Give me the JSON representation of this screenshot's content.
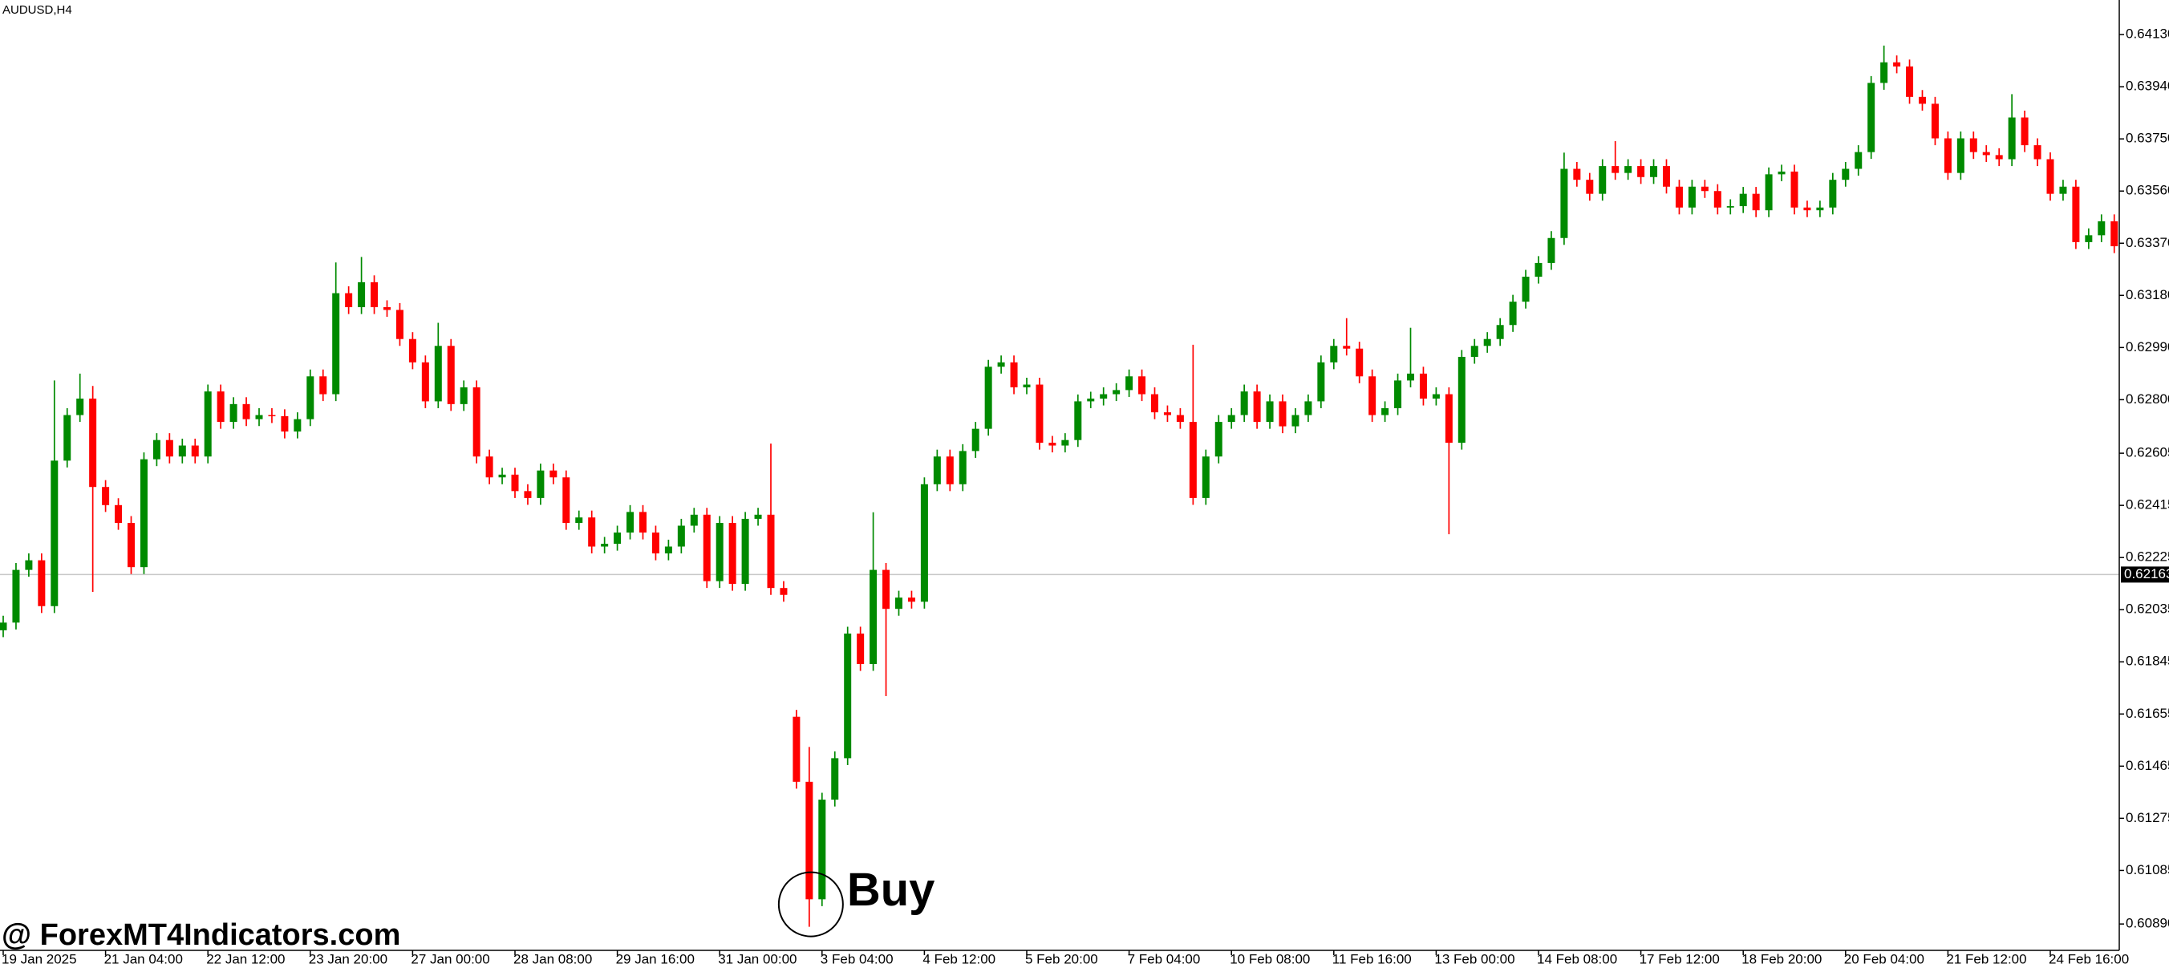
{
  "chart_data": {
    "type": "candlestick",
    "title": "AUDUSD,H4",
    "categories": [
      "19 Jan 2025",
      null,
      null,
      null,
      null,
      null,
      null,
      null,
      "21 Jan 04:00",
      null,
      null,
      null,
      null,
      null,
      null,
      null,
      "22 Jan 12:00",
      null,
      null,
      null,
      null,
      null,
      null,
      null,
      "23 Jan 20:00",
      null,
      null,
      null,
      null,
      null,
      null,
      null,
      "27 Jan 00:00",
      null,
      null,
      null,
      null,
      null,
      null,
      null,
      "28 Jan 08:00",
      null,
      null,
      null,
      null,
      null,
      null,
      null,
      "29 Jan 16:00",
      null,
      null,
      null,
      null,
      null,
      null,
      null,
      "31 Jan 00:00",
      null,
      null,
      null,
      null,
      null,
      null,
      null,
      "3 Feb 04:00",
      null,
      null,
      null,
      null,
      null,
      null,
      null,
      "4 Feb 12:00",
      null,
      null,
      null,
      null,
      null,
      null,
      null,
      "5 Feb 20:00",
      null,
      null,
      null,
      null,
      null,
      null,
      null,
      "7 Feb 04:00",
      null,
      null,
      null,
      null,
      null,
      null,
      null,
      "10 Feb 08:00",
      null,
      null,
      null,
      null,
      null,
      null,
      null,
      "11 Feb 16:00",
      null,
      null,
      null,
      null,
      null,
      null,
      null,
      "13 Feb 00:00",
      null,
      null,
      null,
      null,
      null,
      null,
      null,
      "14 Feb 08:00",
      null,
      null,
      null,
      null,
      null,
      null,
      null,
      "17 Feb 12:00",
      null,
      null,
      null,
      null,
      null,
      null,
      null,
      "18 Feb 20:00",
      null,
      null,
      null,
      null,
      null,
      null,
      null,
      "20 Feb 04:00",
      null,
      null,
      null,
      null,
      null,
      null,
      null,
      "21 Feb 12:00",
      null,
      null,
      null,
      null,
      null,
      null,
      null,
      "24 Feb 16:00",
      null,
      null,
      null,
      null,
      null
    ],
    "open": [
      0.6196,
      0.61988,
      0.6218,
      0.62215,
      0.62048,
      0.62578,
      0.62744,
      0.62804,
      0.62482,
      0.62416,
      0.62351,
      0.6219,
      0.62583,
      0.62653,
      0.62593,
      0.62633,
      0.62593,
      0.6283,
      0.62719,
      0.62784,
      0.62729,
      0.62744,
      0.6274,
      0.62684,
      0.62729,
      0.62885,
      0.6282,
      0.63188,
      0.63137,
      0.63228,
      0.63137,
      0.63127,
      0.63021,
      0.62936,
      0.62794,
      0.62996,
      0.62784,
      0.62845,
      0.62593,
      0.62517,
      0.62527,
      0.62467,
      0.62442,
      0.62542,
      0.62517,
      0.62351,
      0.62371,
      0.62265,
      0.62275,
      0.62316,
      0.62391,
      0.62316,
      0.6224,
      0.62265,
      0.62341,
      0.62381,
      0.62139,
      0.62351,
      0.62129,
      0.62366,
      0.62381,
      0.62114,
      0.61645,
      0.61408,
      0.6098,
      0.61343,
      0.61494,
      0.61948,
      0.61837,
      0.6218,
      0.62038,
      0.62079,
      0.62064,
      0.62492,
      0.62593,
      0.62492,
      0.62613,
      0.62694,
      0.6292,
      0.62936,
      0.62845,
      0.62855,
      0.62643,
      0.62633,
      0.62653,
      0.62794,
      0.62804,
      0.6282,
      0.62835,
      0.62885,
      0.6282,
      0.62754,
      0.62744,
      0.62719,
      0.62442,
      0.62593,
      0.62719,
      0.62744,
      0.6283,
      0.62719,
      0.62794,
      0.62703,
      0.62744,
      0.62794,
      0.62936,
      0.62996,
      0.62986,
      0.62885,
      0.62744,
      0.62769,
      0.6287,
      0.62895,
      0.62804,
      0.6282,
      0.62643,
      0.62956,
      0.62996,
      0.63021,
      0.63072,
      0.63157,
      0.63248,
      0.63298,
      0.63389,
      0.63641,
      0.63601,
      0.6355,
      0.63651,
      0.63626,
      0.63651,
      0.63611,
      0.63651,
      0.63576,
      0.635,
      0.63576,
      0.6356,
      0.635,
      0.63505,
      0.6355,
      0.6349,
      0.63621,
      0.63631,
      0.635,
      0.6349,
      0.635,
      0.63601,
      0.63641,
      0.63702,
      0.63954,
      0.64029,
      0.64014,
      0.63903,
      0.63878,
      0.63752,
      0.63626,
      0.63752,
      0.63702,
      0.63691,
      0.63676,
      0.63828,
      0.63727,
      0.63676,
      0.6355,
      0.63576,
      0.63374,
      0.63399,
      0.6345
    ],
    "high": [
      0.62013,
      0.62205,
      0.6224,
      0.6224,
      0.6287,
      0.62769,
      0.62895,
      0.6285,
      0.62507,
      0.62441,
      0.62376,
      0.62608,
      0.62678,
      0.62678,
      0.62658,
      0.62658,
      0.62855,
      0.62855,
      0.62809,
      0.62809,
      0.62769,
      0.62769,
      0.62765,
      0.62754,
      0.6291,
      0.6291,
      0.633,
      0.63213,
      0.6332,
      0.63253,
      0.63162,
      0.63152,
      0.63046,
      0.62961,
      0.6308,
      0.63021,
      0.6287,
      0.6287,
      0.62618,
      0.62552,
      0.62552,
      0.62492,
      0.62567,
      0.62567,
      0.62542,
      0.62396,
      0.62396,
      0.623,
      0.62341,
      0.62416,
      0.62416,
      0.62341,
      0.6229,
      0.62366,
      0.62406,
      0.62406,
      0.62376,
      0.62376,
      0.62391,
      0.62406,
      0.6264,
      0.62139,
      0.6167,
      0.61535,
      0.61368,
      0.61519,
      0.61973,
      0.61973,
      0.6239,
      0.62205,
      0.62104,
      0.62104,
      0.62517,
      0.62618,
      0.62618,
      0.62638,
      0.62719,
      0.62945,
      0.62961,
      0.62961,
      0.6288,
      0.6288,
      0.62668,
      0.62678,
      0.62819,
      0.62829,
      0.62845,
      0.6286,
      0.6291,
      0.6291,
      0.62845,
      0.62779,
      0.62769,
      0.63,
      0.62618,
      0.62744,
      0.62769,
      0.62855,
      0.62855,
      0.62819,
      0.62819,
      0.62769,
      0.62819,
      0.62961,
      0.63021,
      0.63097,
      0.63011,
      0.6291,
      0.62794,
      0.62895,
      0.63062,
      0.6292,
      0.62845,
      0.62845,
      0.62981,
      0.63021,
      0.63046,
      0.63097,
      0.63182,
      0.63273,
      0.63323,
      0.63414,
      0.637,
      0.63666,
      0.63626,
      0.63676,
      0.63742,
      0.63676,
      0.63676,
      0.63676,
      0.63676,
      0.63601,
      0.63601,
      0.63601,
      0.63585,
      0.6353,
      0.63575,
      0.63575,
      0.63646,
      0.63656,
      0.63656,
      0.63525,
      0.63525,
      0.63626,
      0.63666,
      0.63727,
      0.63979,
      0.6409,
      0.64054,
      0.64039,
      0.63928,
      0.63903,
      0.63777,
      0.63777,
      0.63777,
      0.63727,
      0.63716,
      0.63913,
      0.63853,
      0.63752,
      0.63701,
      0.63601,
      0.63601,
      0.63424,
      0.63475,
      0.63475
    ],
    "low": [
      0.61935,
      0.61963,
      0.62155,
      0.62023,
      0.62023,
      0.62553,
      0.62719,
      0.621,
      0.62391,
      0.62326,
      0.62165,
      0.62165,
      0.62558,
      0.62568,
      0.62568,
      0.62568,
      0.62568,
      0.62694,
      0.62694,
      0.62704,
      0.62704,
      0.62715,
      0.62659,
      0.62659,
      0.62704,
      0.62795,
      0.62795,
      0.63112,
      0.63112,
      0.63112,
      0.63102,
      0.62996,
      0.62911,
      0.62769,
      0.62769,
      0.62759,
      0.62759,
      0.62568,
      0.62492,
      0.62492,
      0.62442,
      0.62417,
      0.62417,
      0.62492,
      0.62326,
      0.62326,
      0.6224,
      0.6224,
      0.6225,
      0.62291,
      0.62291,
      0.62215,
      0.62215,
      0.6224,
      0.62316,
      0.62114,
      0.62114,
      0.62104,
      0.62104,
      0.62341,
      0.62089,
      0.62064,
      0.61383,
      0.6088,
      0.60955,
      0.61318,
      0.61469,
      0.61812,
      0.61812,
      0.6172,
      0.62013,
      0.62039,
      0.62039,
      0.62467,
      0.62467,
      0.62467,
      0.62588,
      0.62669,
      0.62895,
      0.6282,
      0.6282,
      0.62618,
      0.62608,
      0.62608,
      0.62628,
      0.62769,
      0.62779,
      0.62795,
      0.6281,
      0.62795,
      0.62729,
      0.62719,
      0.62694,
      0.62417,
      0.62417,
      0.62568,
      0.62694,
      0.62719,
      0.62694,
      0.62694,
      0.62678,
      0.62678,
      0.62719,
      0.62769,
      0.62911,
      0.62961,
      0.6286,
      0.62719,
      0.62719,
      0.62744,
      0.62845,
      0.62779,
      0.62779,
      0.6231,
      0.62618,
      0.62931,
      0.62971,
      0.62996,
      0.63047,
      0.63132,
      0.63223,
      0.63273,
      0.63364,
      0.63576,
      0.63525,
      0.63525,
      0.63601,
      0.63601,
      0.63586,
      0.63586,
      0.63551,
      0.63475,
      0.63475,
      0.63535,
      0.63475,
      0.63475,
      0.6348,
      0.63465,
      0.63465,
      0.63596,
      0.63475,
      0.63465,
      0.63465,
      0.63475,
      0.63576,
      0.63616,
      0.63677,
      0.63929,
      0.63989,
      0.63878,
      0.63853,
      0.63727,
      0.63601,
      0.63601,
      0.63677,
      0.63666,
      0.63651,
      0.63651,
      0.63702,
      0.63651,
      0.63525,
      0.63525,
      0.63349,
      0.63349,
      0.63374,
      0.63334
    ],
    "close": [
      0.61988,
      0.6218,
      0.62215,
      0.62048,
      0.62578,
      0.62744,
      0.62804,
      0.62482,
      0.62416,
      0.62351,
      0.6219,
      0.62583,
      0.62653,
      0.62593,
      0.62633,
      0.62593,
      0.6283,
      0.62719,
      0.62784,
      0.62729,
      0.62744,
      0.6274,
      0.62684,
      0.62729,
      0.62885,
      0.6282,
      0.63188,
      0.63137,
      0.63228,
      0.63137,
      0.63127,
      0.63021,
      0.62936,
      0.62794,
      0.62996,
      0.62784,
      0.62845,
      0.62593,
      0.62517,
      0.62527,
      0.62467,
      0.62442,
      0.62542,
      0.62517,
      0.62351,
      0.62371,
      0.62265,
      0.62275,
      0.62316,
      0.62391,
      0.62316,
      0.6224,
      0.62265,
      0.62341,
      0.62381,
      0.62139,
      0.62351,
      0.62129,
      0.62366,
      0.62381,
      0.62114,
      0.62089,
      0.61408,
      0.6098,
      0.61343,
      0.61494,
      0.61948,
      0.61837,
      0.6218,
      0.62038,
      0.62079,
      0.62064,
      0.62492,
      0.62593,
      0.62492,
      0.62613,
      0.62694,
      0.6292,
      0.62936,
      0.62845,
      0.62855,
      0.62643,
      0.62633,
      0.62653,
      0.62794,
      0.62804,
      0.6282,
      0.62835,
      0.62885,
      0.6282,
      0.62754,
      0.62744,
      0.62719,
      0.62442,
      0.62593,
      0.62719,
      0.62744,
      0.6283,
      0.62719,
      0.62794,
      0.62703,
      0.62744,
      0.62794,
      0.62936,
      0.62996,
      0.62986,
      0.62885,
      0.62744,
      0.62769,
      0.6287,
      0.62895,
      0.62804,
      0.6282,
      0.62643,
      0.62956,
      0.62996,
      0.63021,
      0.63072,
      0.63157,
      0.63248,
      0.63298,
      0.63389,
      0.63641,
      0.63601,
      0.6355,
      0.63651,
      0.63626,
      0.63651,
      0.63611,
      0.63651,
      0.63576,
      0.635,
      0.63576,
      0.6356,
      0.635,
      0.63505,
      0.6355,
      0.6349,
      0.63621,
      0.63631,
      0.635,
      0.6349,
      0.635,
      0.63601,
      0.63641,
      0.63702,
      0.63954,
      0.64029,
      0.64014,
      0.63903,
      0.63878,
      0.63752,
      0.63626,
      0.63752,
      0.63702,
      0.63691,
      0.63676,
      0.63828,
      0.63727,
      0.63676,
      0.6355,
      0.63576,
      0.63374,
      0.63399,
      0.6345,
      0.63359
    ],
    "up_color": "#008a00",
    "down_color": "#ff0000",
    "current_price": 0.62163,
    "current_price_color": "#c8c8c8",
    "ylim": [
      0.60794,
      0.64256
    ],
    "yticks": [
      {
        "value": 0.6413,
        "label": "0.64130"
      },
      {
        "value": 0.6394,
        "label": "0.63940"
      },
      {
        "value": 0.6375,
        "label": "0.63750"
      },
      {
        "value": 0.6356,
        "label": "0.63560"
      },
      {
        "value": 0.6337,
        "label": "0.63370"
      },
      {
        "value": 0.6318,
        "label": "0.63180"
      },
      {
        "value": 0.6299,
        "label": "0.62990"
      },
      {
        "value": 0.628,
        "label": "0.62800"
      },
      0.62605,
      0.62415,
      0.62225,
      0.62035,
      0.61845,
      0.61655,
      0.61465,
      0.61275,
      0.61085,
      {
        "value": 0.6089,
        "label": "0.60890"
      }
    ],
    "grid": false,
    "annotation": {
      "text": "Buy",
      "index": 63
    },
    "watermark": "@ ForexMT4Indicators.com"
  }
}
